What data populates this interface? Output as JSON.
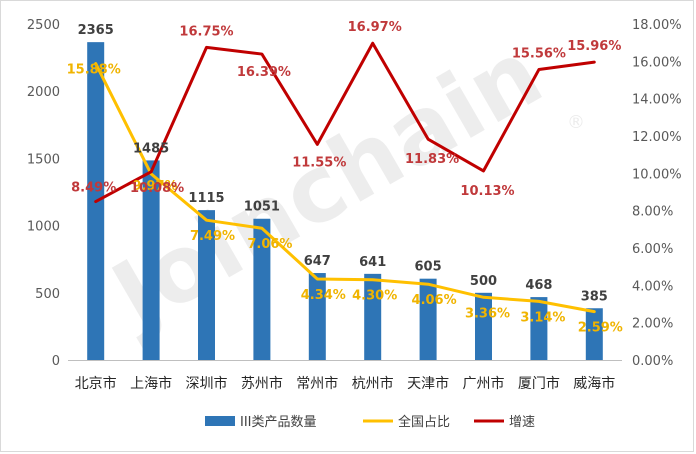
{
  "watermark": {
    "text": "Joinchain",
    "mark": "®"
  },
  "colors": {
    "bar": "#2e75b6",
    "share": "#ffc000",
    "growth": "#c00000",
    "growthLabel": "#c0393b",
    "shareLabel": "#f0b400"
  },
  "chart_data": {
    "type": "bar",
    "categories": [
      "北京市",
      "上海市",
      "深圳市",
      "苏州市",
      "常州市",
      "杭州市",
      "天津市",
      "广州市",
      "厦门市",
      "威海市"
    ],
    "series": [
      {
        "name": "III类产品数量",
        "kind": "bar",
        "axis": "left",
        "values": [
          2365,
          1485,
          1115,
          1051,
          647,
          641,
          605,
          500,
          468,
          385
        ],
        "labels": [
          "2365",
          "1485",
          "1115",
          "1051",
          "647",
          "641",
          "605",
          "500",
          "468",
          "385"
        ]
      },
      {
        "name": "全国占比",
        "kind": "line",
        "axis": "right",
        "values": [
          15.88,
          9.97,
          7.49,
          7.06,
          4.34,
          4.3,
          4.06,
          3.36,
          3.14,
          2.59
        ],
        "labels": [
          "15.88%",
          "9.97%",
          "7.49%",
          "7.06%",
          "4.34%",
          "4.30%",
          "4.06%",
          "3.36%",
          "3.14%",
          "2.59%"
        ]
      },
      {
        "name": "增速",
        "kind": "line",
        "axis": "right",
        "values": [
          8.49,
          10.08,
          16.75,
          16.39,
          11.55,
          16.97,
          11.83,
          10.13,
          15.56,
          15.96
        ],
        "labels": [
          "8.49%",
          "10.08%",
          "16.75%",
          "16.39%",
          "11.55%",
          "16.97%",
          "11.83%",
          "10.13%",
          "15.56%",
          "15.96%"
        ]
      }
    ],
    "y_left": {
      "min": 0,
      "max": 2500,
      "ticks": [
        "0",
        "500",
        "1000",
        "1500",
        "2000",
        "2500"
      ]
    },
    "y_right": {
      "min": 0,
      "max": 18,
      "ticks": [
        "0.00%",
        "2.00%",
        "4.00%",
        "6.00%",
        "8.00%",
        "10.00%",
        "12.00%",
        "14.00%",
        "16.00%",
        "18.00%"
      ]
    },
    "grid": false,
    "legend": {
      "position": "bottom",
      "items": [
        "III类产品数量",
        "全国占比",
        "增速"
      ]
    },
    "title": "",
    "xlabel": "",
    "ylabel": ""
  }
}
